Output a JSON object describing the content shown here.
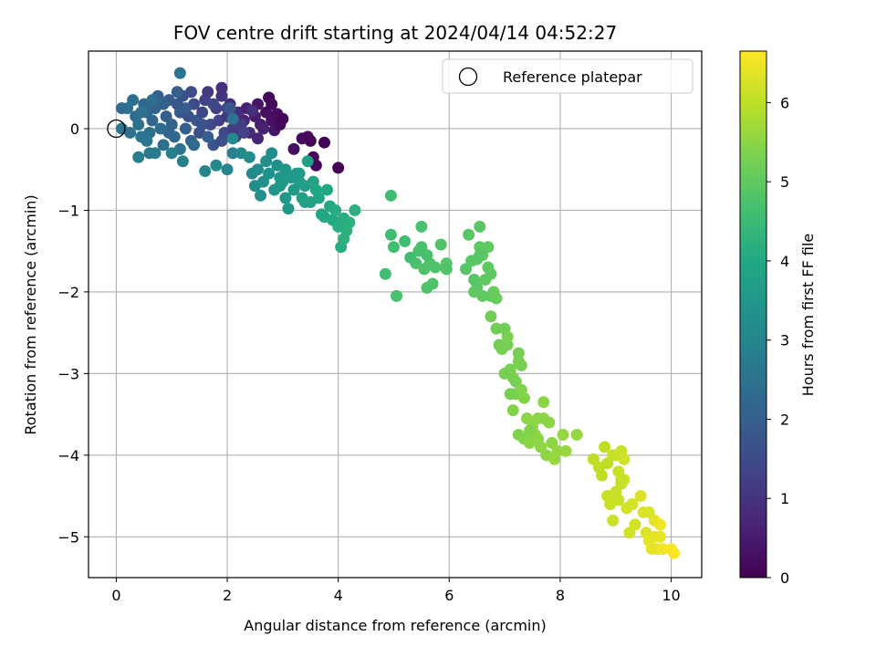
{
  "chart_data": {
    "type": "scatter",
    "title": "FOV centre drift starting at 2024/04/14 04:52:27",
    "xlabel": "Angular distance from reference (arcmin)",
    "ylabel": "Rotation from reference (arcmin)",
    "xlim": [
      -0.5,
      10.55
    ],
    "ylim": [
      -5.5,
      0.95
    ],
    "xticks": [
      0,
      2,
      4,
      6,
      8,
      10
    ],
    "yticks": [
      -5,
      -4,
      -3,
      -2,
      -1,
      0
    ],
    "grid": true,
    "colorbar": {
      "label": "Hours from first FF file",
      "range": [
        0,
        6.65
      ],
      "ticks": [
        0,
        1,
        2,
        3,
        4,
        5,
        6
      ],
      "colormap": "viridis"
    },
    "legend": {
      "placement": "upper right",
      "entries": [
        "Reference platepar"
      ]
    },
    "reference_point": {
      "x": 0,
      "y": 0
    },
    "point_fields": [
      "x",
      "y",
      "hours"
    ],
    "points": [
      [
        0.1,
        0.0,
        2.6
      ],
      [
        0.2,
        0.25,
        2.5
      ],
      [
        0.3,
        0.35,
        2.4
      ],
      [
        0.35,
        0.15,
        2.3
      ],
      [
        0.4,
        0.05,
        2.5
      ],
      [
        0.45,
        -0.1,
        2.6
      ],
      [
        0.5,
        0.3,
        2.2
      ],
      [
        0.55,
        0.2,
        2.3
      ],
      [
        0.6,
        -0.05,
        2.4
      ],
      [
        0.65,
        0.1,
        2.2
      ],
      [
        0.7,
        0.25,
        2.1
      ],
      [
        0.75,
        0.4,
        2.0
      ],
      [
        0.8,
        0.0,
        2.3
      ],
      [
        0.85,
        -0.2,
        2.4
      ],
      [
        0.9,
        0.15,
        2.0
      ],
      [
        0.95,
        0.35,
        1.9
      ],
      [
        1.0,
        0.05,
        2.1
      ],
      [
        1.05,
        -0.1,
        2.2
      ],
      [
        1.1,
        0.3,
        1.8
      ],
      [
        1.15,
        0.2,
        1.9
      ],
      [
        1.2,
        0.4,
        1.7
      ],
      [
        1.25,
        0.0,
        2.0
      ],
      [
        1.3,
        0.15,
        1.6
      ],
      [
        1.35,
        -0.15,
        2.1
      ],
      [
        1.4,
        0.3,
        1.5
      ],
      [
        1.45,
        0.1,
        1.8
      ],
      [
        1.5,
        -0.05,
        1.6
      ],
      [
        1.55,
        0.2,
        1.4
      ],
      [
        1.6,
        0.35,
        1.3
      ],
      [
        1.7,
        0.05,
        1.5
      ],
      [
        1.75,
        -0.2,
        1.7
      ],
      [
        1.8,
        0.25,
        1.2
      ],
      [
        1.85,
        0.1,
        1.3
      ],
      [
        1.9,
        0.4,
        1.0
      ],
      [
        1.95,
        -0.05,
        1.4
      ],
      [
        2.0,
        0.15,
        1.1
      ],
      [
        2.05,
        0.3,
        0.8
      ],
      [
        2.1,
        0.0,
        1.2
      ],
      [
        2.15,
        -0.1,
        1.0
      ],
      [
        2.2,
        0.2,
        0.9
      ],
      [
        2.3,
        0.1,
        0.7
      ],
      [
        2.35,
        0.25,
        0.6
      ],
      [
        2.4,
        -0.05,
        0.8
      ],
      [
        2.5,
        0.15,
        0.5
      ],
      [
        2.55,
        0.3,
        0.4
      ],
      [
        2.6,
        0.05,
        0.5
      ],
      [
        2.7,
        0.2,
        0.3
      ],
      [
        2.75,
        0.38,
        0.2
      ],
      [
        2.8,
        0.1,
        0.3
      ],
      [
        2.85,
        -0.02,
        0.4
      ],
      [
        2.9,
        0.18,
        0.2
      ],
      [
        2.95,
        0.05,
        0.15
      ],
      [
        3.0,
        0.12,
        0.1
      ],
      [
        0.1,
        0.25,
        2.3
      ],
      [
        0.25,
        -0.05,
        2.5
      ],
      [
        0.45,
        0.2,
        2.5
      ],
      [
        0.55,
        -0.15,
        2.6
      ],
      [
        0.65,
        0.35,
        2.4
      ],
      [
        0.7,
        -0.3,
        2.8
      ],
      [
        0.85,
        0.3,
        2.1
      ],
      [
        0.95,
        -0.05,
        2.2
      ],
      [
        1.1,
        0.45,
        2.0
      ],
      [
        1.15,
        -0.25,
        2.6
      ],
      [
        1.25,
        0.25,
        1.9
      ],
      [
        1.4,
        -0.2,
        2.3
      ],
      [
        1.55,
        0.05,
        1.7
      ],
      [
        1.65,
        -0.1,
        2.0
      ],
      [
        1.75,
        0.3,
        1.4
      ],
      [
        1.9,
        -0.15,
        1.6
      ],
      [
        2.0,
        0.25,
        1.3
      ],
      [
        2.1,
        -0.3,
        2.8
      ],
      [
        2.25,
        0.05,
        1.2
      ],
      [
        2.45,
        0.22,
        0.9
      ],
      [
        2.65,
        0.0,
        0.6
      ],
      [
        0.4,
        -0.35,
        2.8
      ],
      [
        0.6,
        -0.3,
        2.7
      ],
      [
        1.0,
        -0.3,
        2.9
      ],
      [
        1.2,
        -0.4,
        2.9
      ],
      [
        1.15,
        0.68,
        2.6
      ],
      [
        1.35,
        0.45,
        1.6
      ],
      [
        1.65,
        0.45,
        1.1
      ],
      [
        1.9,
        0.5,
        0.9
      ],
      [
        2.05,
        0.25,
        1.8
      ],
      [
        2.1,
        0.12,
        2.5
      ],
      [
        2.3,
        -0.05,
        1.3
      ],
      [
        2.55,
        -0.12,
        0.7
      ],
      [
        2.75,
        0.38,
        0.15
      ],
      [
        2.8,
        0.3,
        0.2
      ],
      [
        3.2,
        -0.25,
        0.3
      ],
      [
        3.35,
        -0.12,
        0.2
      ],
      [
        3.45,
        -0.1,
        0.15
      ],
      [
        3.55,
        -0.35,
        0.1
      ],
      [
        3.6,
        -0.45,
        0.1
      ],
      [
        3.75,
        -0.17,
        0.05
      ],
      [
        4.0,
        -0.48,
        0.0
      ],
      [
        3.5,
        -0.15,
        0.05
      ],
      [
        1.6,
        -0.52,
        3.0
      ],
      [
        1.8,
        -0.45,
        3.1
      ],
      [
        2.0,
        -0.5,
        3.0
      ],
      [
        2.1,
        -0.12,
        3.1
      ],
      [
        2.25,
        -0.3,
        3.1
      ],
      [
        2.4,
        -0.35,
        3.2
      ],
      [
        2.45,
        -0.55,
        3.1
      ],
      [
        2.5,
        -0.7,
        3.2
      ],
      [
        2.55,
        -0.5,
        3.2
      ],
      [
        2.6,
        -0.82,
        3.3
      ],
      [
        2.7,
        -0.4,
        3.3
      ],
      [
        2.75,
        -0.55,
        3.3
      ],
      [
        2.8,
        -0.3,
        3.2
      ],
      [
        2.85,
        -0.75,
        3.4
      ],
      [
        2.9,
        -0.45,
        3.3
      ],
      [
        2.95,
        -0.6,
        3.4
      ],
      [
        3.0,
        -0.65,
        3.5
      ],
      [
        3.05,
        -0.5,
        3.5
      ],
      [
        3.1,
        -0.98,
        3.5
      ],
      [
        3.15,
        -0.6,
        3.6
      ],
      [
        3.2,
        -0.75,
        3.6
      ],
      [
        3.25,
        -0.55,
        3.6
      ],
      [
        3.3,
        -0.65,
        3.7
      ],
      [
        3.35,
        -0.85,
        3.7
      ],
      [
        3.4,
        -0.7,
        3.7
      ],
      [
        3.45,
        -0.4,
        3.8
      ],
      [
        3.5,
        -0.9,
        3.8
      ],
      [
        3.55,
        -0.65,
        3.8
      ],
      [
        3.6,
        -0.75,
        3.9
      ],
      [
        3.65,
        -0.85,
        3.9
      ],
      [
        3.7,
        -1.05,
        3.9
      ],
      [
        3.75,
        -1.08,
        4.0
      ],
      [
        3.8,
        -0.75,
        4.0
      ],
      [
        3.85,
        -0.95,
        4.0
      ],
      [
        3.9,
        -1.12,
        4.0
      ],
      [
        3.95,
        -1.0,
        4.1
      ],
      [
        4.0,
        -1.2,
        4.1
      ],
      [
        4.05,
        -1.45,
        4.1
      ],
      [
        4.1,
        -1.1,
        4.1
      ],
      [
        4.15,
        -1.25,
        4.2
      ],
      [
        4.2,
        -1.15,
        4.2
      ],
      [
        4.3,
        -1.0,
        4.2
      ],
      [
        4.1,
        -1.35,
        4.2
      ],
      [
        3.4,
        -0.9,
        3.8
      ],
      [
        3.3,
        -0.55,
        3.6
      ],
      [
        3.05,
        -0.85,
        3.5
      ],
      [
        2.95,
        -0.7,
        3.5
      ],
      [
        2.65,
        -0.65,
        3.3
      ],
      [
        4.95,
        -0.82,
        4.6
      ],
      [
        4.85,
        -1.78,
        4.6
      ],
      [
        4.95,
        -1.3,
        4.6
      ],
      [
        5.0,
        -1.45,
        4.6
      ],
      [
        5.05,
        -2.05,
        4.7
      ],
      [
        5.2,
        -1.38,
        4.6
      ],
      [
        5.3,
        -1.58,
        4.6
      ],
      [
        5.4,
        -1.65,
        4.7
      ],
      [
        5.45,
        -1.5,
        4.7
      ],
      [
        5.5,
        -1.45,
        4.7
      ],
      [
        5.5,
        -1.2,
        4.7
      ],
      [
        5.55,
        -1.72,
        4.8
      ],
      [
        5.6,
        -1.55,
        4.7
      ],
      [
        5.6,
        -1.95,
        4.8
      ],
      [
        5.65,
        -1.65,
        4.8
      ],
      [
        5.7,
        -1.9,
        4.8
      ],
      [
        5.75,
        -1.7,
        4.8
      ],
      [
        5.85,
        -1.42,
        4.8
      ],
      [
        5.95,
        -1.65,
        4.9
      ],
      [
        5.95,
        -1.72,
        4.8
      ],
      [
        6.3,
        -1.72,
        4.9
      ],
      [
        6.35,
        -1.3,
        4.9
      ],
      [
        6.4,
        -1.62,
        4.9
      ],
      [
        6.45,
        -1.85,
        4.9
      ],
      [
        6.5,
        -1.95,
        4.9
      ],
      [
        6.5,
        -1.6,
        4.9
      ],
      [
        6.55,
        -1.2,
        4.9
      ],
      [
        6.55,
        -1.45,
        5.0
      ],
      [
        6.6,
        -1.55,
        5.0
      ],
      [
        6.65,
        -1.85,
        5.0
      ],
      [
        6.7,
        -1.7,
        5.0
      ],
      [
        6.7,
        -1.45,
        5.0
      ],
      [
        6.75,
        -2.05,
        5.0
      ],
      [
        6.75,
        -1.78,
        5.0
      ],
      [
        6.8,
        -2.0,
        5.1
      ],
      [
        6.85,
        -2.08,
        5.1
      ],
      [
        6.6,
        -2.05,
        5.0
      ],
      [
        6.45,
        -2.0,
        5.0
      ],
      [
        6.55,
        -1.55,
        4.9
      ],
      [
        6.75,
        -2.3,
        5.2
      ],
      [
        6.85,
        -2.45,
        5.2
      ],
      [
        6.9,
        -2.65,
        5.2
      ],
      [
        6.95,
        -2.7,
        5.3
      ],
      [
        7.0,
        -2.45,
        5.2
      ],
      [
        7.05,
        -2.55,
        5.3
      ],
      [
        7.05,
        -2.65,
        5.3
      ],
      [
        7.0,
        -3.0,
        5.3
      ],
      [
        7.1,
        -2.95,
        5.3
      ],
      [
        7.15,
        -3.05,
        5.3
      ],
      [
        7.2,
        -3.1,
        5.3
      ],
      [
        7.25,
        -2.75,
        5.3
      ],
      [
        7.25,
        -2.85,
        5.3
      ],
      [
        7.3,
        -2.9,
        5.3
      ],
      [
        7.1,
        -3.25,
        5.3
      ],
      [
        7.2,
        -3.25,
        5.3
      ],
      [
        7.3,
        -3.2,
        5.4
      ],
      [
        7.35,
        -3.3,
        5.4
      ],
      [
        7.15,
        -3.45,
        5.4
      ],
      [
        7.25,
        -3.75,
        5.4
      ],
      [
        7.35,
        -3.8,
        5.4
      ],
      [
        7.4,
        -3.55,
        5.5
      ],
      [
        7.45,
        -3.85,
        5.5
      ],
      [
        7.5,
        -3.65,
        5.5
      ],
      [
        7.55,
        -3.75,
        5.5
      ],
      [
        7.6,
        -3.55,
        5.5
      ],
      [
        7.65,
        -3.9,
        5.5
      ],
      [
        7.7,
        -3.55,
        5.5
      ],
      [
        7.7,
        -3.35,
        5.5
      ],
      [
        7.75,
        -4.0,
        5.5
      ],
      [
        7.8,
        -3.6,
        5.5
      ],
      [
        7.85,
        -3.85,
        5.5
      ],
      [
        7.9,
        -4.05,
        5.6
      ],
      [
        7.95,
        -3.95,
        5.6
      ],
      [
        8.05,
        -3.75,
        5.6
      ],
      [
        8.1,
        -3.95,
        5.6
      ],
      [
        8.3,
        -3.75,
        5.6
      ],
      [
        7.45,
        -3.7,
        5.4
      ],
      [
        7.6,
        -3.8,
        5.5
      ],
      [
        8.6,
        -4.05,
        6.0
      ],
      [
        8.7,
        -4.15,
        6.0
      ],
      [
        8.75,
        -4.25,
        6.0
      ],
      [
        8.8,
        -3.9,
        6.0
      ],
      [
        8.85,
        -4.1,
        6.0
      ],
      [
        8.85,
        -4.5,
        6.1
      ],
      [
        8.9,
        -4.6,
        6.1
      ],
      [
        8.95,
        -4.55,
        6.1
      ],
      [
        8.95,
        -4.8,
        6.1
      ],
      [
        9.0,
        -4.0,
        6.1
      ],
      [
        9.0,
        -4.45,
        6.1
      ],
      [
        9.05,
        -4.2,
        6.1
      ],
      [
        9.05,
        -4.55,
        6.1
      ],
      [
        9.1,
        -3.95,
        6.1
      ],
      [
        9.1,
        -4.35,
        6.1
      ],
      [
        9.15,
        -4.05,
        6.2
      ],
      [
        9.15,
        -4.3,
        6.2
      ],
      [
        9.2,
        -4.65,
        6.2
      ],
      [
        9.25,
        -4.95,
        6.2
      ],
      [
        9.3,
        -4.6,
        6.2
      ],
      [
        9.35,
        -4.85,
        6.2
      ],
      [
        9.45,
        -4.5,
        6.3
      ],
      [
        9.5,
        -4.7,
        6.3
      ],
      [
        9.55,
        -4.95,
        6.3
      ],
      [
        9.6,
        -4.7,
        6.3
      ],
      [
        9.6,
        -5.05,
        6.4
      ],
      [
        9.65,
        -5.15,
        6.4
      ],
      [
        9.7,
        -4.8,
        6.4
      ],
      [
        9.7,
        -5.0,
        6.4
      ],
      [
        9.75,
        -5.15,
        6.4
      ],
      [
        9.8,
        -4.85,
        6.5
      ],
      [
        9.85,
        -5.15,
        6.5
      ],
      [
        10.0,
        -5.15,
        6.6
      ],
      [
        10.05,
        -5.2,
        6.6
      ],
      [
        8.95,
        -4.0,
        6.1
      ],
      [
        9.1,
        -4.3,
        6.1
      ],
      [
        9.8,
        -5.0,
        6.4
      ]
    ]
  }
}
